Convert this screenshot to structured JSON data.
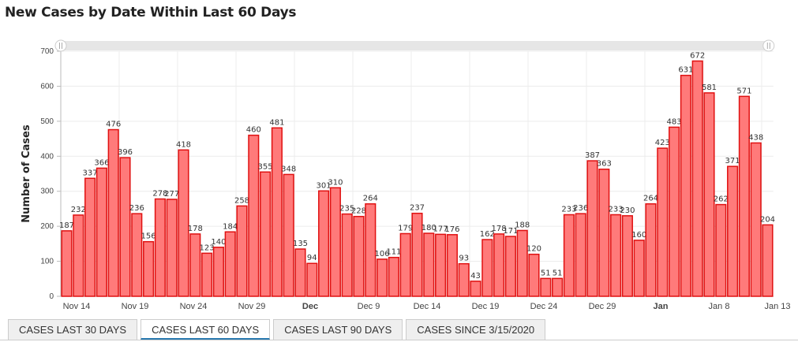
{
  "title": "New Cases by Date Within Last 60 Days",
  "tabs": [
    {
      "label": "CASES LAST 30 DAYS",
      "active": false
    },
    {
      "label": "CASES LAST 60 DAYS",
      "active": true
    },
    {
      "label": "CASES LAST 90 DAYS",
      "active": false
    },
    {
      "label": "CASES SINCE 3/15/2020",
      "active": false
    }
  ],
  "chart_data": {
    "type": "bar",
    "title": "New Cases by Date Within Last 60 Days",
    "xlabel": "",
    "ylabel": "Number of Cases",
    "ylim": [
      0,
      700
    ],
    "yticks": [
      0,
      100,
      200,
      300,
      400,
      500,
      600,
      700
    ],
    "grid": true,
    "bar_color": "#ff7a7a",
    "bar_edge_color": "#e01010",
    "x_ticks": [
      {
        "index": 0,
        "label": "Nov 14",
        "bold": false
      },
      {
        "index": 5,
        "label": "Nov 19",
        "bold": false
      },
      {
        "index": 10,
        "label": "Nov 24",
        "bold": false
      },
      {
        "index": 15,
        "label": "Nov 29",
        "bold": false
      },
      {
        "index": 20,
        "label": "Dec",
        "bold": true
      },
      {
        "index": 25,
        "label": "Dec 9",
        "bold": false
      },
      {
        "index": 30,
        "label": "Dec 14",
        "bold": false
      },
      {
        "index": 35,
        "label": "Dec 19",
        "bold": false
      },
      {
        "index": 40,
        "label": "Dec 24",
        "bold": false
      },
      {
        "index": 45,
        "label": "Dec 29",
        "bold": false
      },
      {
        "index": 50,
        "label": "Jan",
        "bold": true
      },
      {
        "index": 55,
        "label": "Jan 8",
        "bold": false
      },
      {
        "index": 60,
        "label": "Jan 13",
        "bold": false
      }
    ],
    "values": [
      187,
      232,
      337,
      366,
      476,
      396,
      236,
      156,
      278,
      277,
      418,
      178,
      123,
      140,
      184,
      258,
      460,
      355,
      481,
      348,
      135,
      94,
      301,
      310,
      235,
      228,
      264,
      106,
      111,
      179,
      237,
      180,
      177,
      176,
      93,
      43,
      162,
      178,
      171,
      188,
      120,
      51,
      51,
      233,
      236,
      387,
      363,
      233,
      230,
      160,
      264,
      423,
      483,
      631,
      672,
      581,
      262,
      371,
      571,
      438,
      204
    ]
  }
}
